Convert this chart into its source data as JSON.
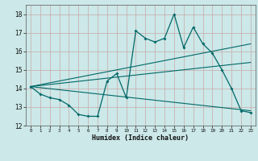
{
  "xlabel": "Humidex (Indice chaleur)",
  "x": [
    0,
    1,
    2,
    3,
    4,
    5,
    6,
    7,
    8,
    9,
    10,
    11,
    12,
    13,
    14,
    15,
    16,
    17,
    18,
    19,
    20,
    21,
    22,
    23
  ],
  "line1": [
    14.1,
    13.7,
    13.5,
    13.4,
    13.1,
    12.6,
    12.5,
    12.5,
    14.4,
    14.8,
    13.5,
    17.1,
    16.7,
    16.5,
    16.7,
    18.0,
    16.2,
    17.3,
    16.4,
    15.9,
    15.0,
    14.0,
    12.8,
    12.7
  ],
  "straight_lines": [
    [
      14.1,
      16.4
    ],
    [
      14.1,
      15.4
    ],
    [
      14.1,
      12.8
    ]
  ],
  "ylim": [
    12,
    18.5
  ],
  "xlim": [
    -0.5,
    23.5
  ],
  "yticks": [
    12,
    13,
    14,
    15,
    16,
    17,
    18
  ],
  "xticks": [
    0,
    1,
    2,
    3,
    4,
    5,
    6,
    7,
    8,
    9,
    10,
    11,
    12,
    13,
    14,
    15,
    16,
    17,
    18,
    19,
    20,
    21,
    22,
    23
  ],
  "bg_color": "#cce8e8",
  "grid_color": "#c8a8a8",
  "line_color": "#006868",
  "fig_bg": "#cce8e8"
}
